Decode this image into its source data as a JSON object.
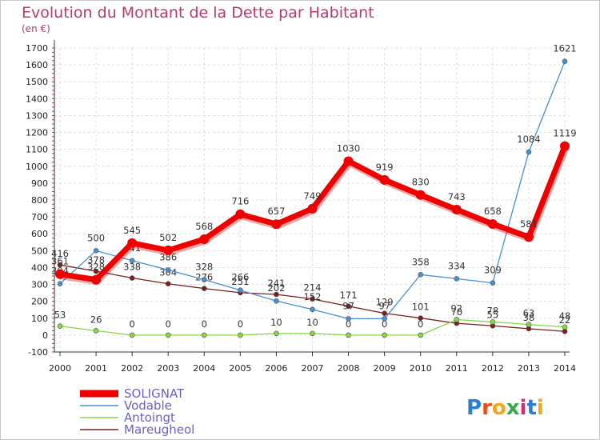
{
  "chart_data": {
    "type": "line",
    "title": "Evolution du Montant de la Dette par Habitant",
    "subtitle": "(en €)",
    "xlabel": "",
    "ylabel": "",
    "ylim": [
      -100,
      1700
    ],
    "yticks": [
      -100,
      0,
      100,
      200,
      300,
      400,
      500,
      600,
      700,
      800,
      900,
      1000,
      1100,
      1200,
      1300,
      1400,
      1500,
      1600,
      1700
    ],
    "categories": [
      "2000",
      "2001",
      "2002",
      "2003",
      "2004",
      "2005",
      "2006",
      "2007",
      "2008",
      "2009",
      "2010",
      "2011",
      "2012",
      "2013",
      "2014"
    ],
    "grid": true,
    "legend_position": "bottom-left",
    "series": [
      {
        "name": "Mareugheol",
        "color": "#7a1f1f",
        "values": [
          416,
          378,
          338,
          304,
          276,
          251,
          241,
          214,
          171,
          129,
          101,
          70,
          55,
          38,
          22
        ]
      },
      {
        "name": "Antoingt",
        "color": "#88d44a",
        "values": [
          53,
          26,
          0,
          0,
          0,
          0,
          10,
          10,
          0,
          0,
          0,
          92,
          78,
          63,
          48
        ]
      },
      {
        "name": "Vodable",
        "color": "#4a8fd0",
        "values": [
          304,
          500,
          441,
          386,
          328,
          266,
          202,
          152,
          97,
          97,
          358,
          334,
          309,
          1084,
          1621
        ]
      },
      {
        "name": "SOLIGNAT",
        "color": "#ee0000",
        "values": [
          361,
          328,
          545,
          502,
          568,
          716,
          657,
          749,
          1030,
          919,
          830,
          743,
          658,
          581,
          1119
        ]
      }
    ],
    "legend_order": [
      "SOLIGNAT",
      "Vodable",
      "Antoingt",
      "Mareugheol"
    ]
  },
  "logo": {
    "text": "Proxiti",
    "letters": [
      "P",
      "r",
      "o",
      "x",
      "i",
      "t",
      "i"
    ],
    "colors": [
      "#2a7fd4",
      "#e84d1c",
      "#f2a61a",
      "#3aa84a",
      "#d42a6e",
      "#2a7fd4",
      "#f2a61a"
    ]
  }
}
